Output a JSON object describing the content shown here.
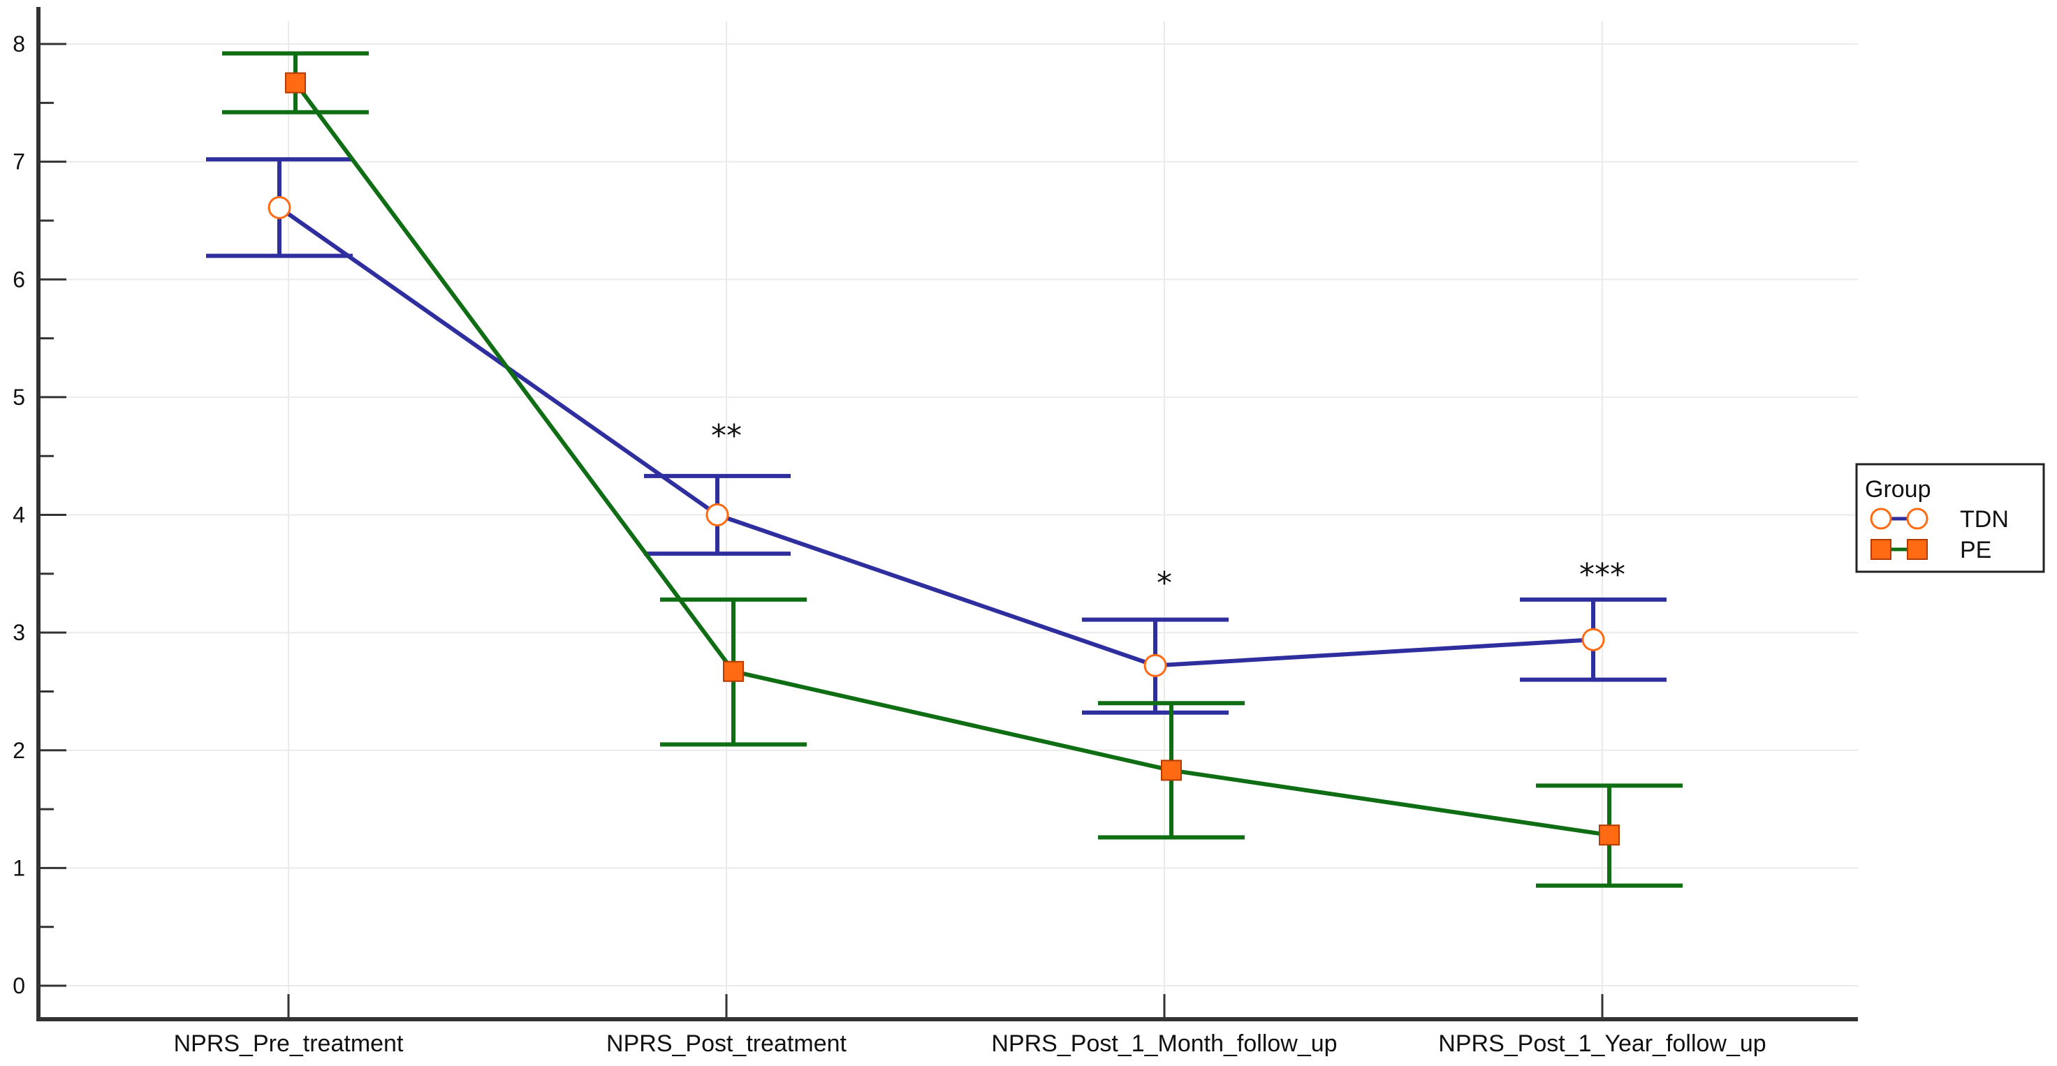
{
  "chart_data": {
    "type": "line",
    "title": "",
    "xlabel": "",
    "ylabel": "",
    "categories": [
      "NPRS_Pre_treatment",
      "NPRS_Post_treatment",
      "NPRS_Post_1_Month_follow_up",
      "NPRS_Post_1_Year_follow_up"
    ],
    "ylim": [
      0,
      8
    ],
    "yticks": [
      "0",
      "1",
      "2",
      "3",
      "4",
      "5",
      "6",
      "7",
      "8"
    ],
    "grid": true,
    "legend": {
      "title": "Group",
      "placement": "right",
      "entries": [
        "TDN",
        "PE"
      ]
    },
    "series": [
      {
        "name": "TDN",
        "color": "#2e2e9e",
        "marker": "circle",
        "marker_fill": "#ffffff",
        "marker_stroke": "#ff6a13",
        "values": [
          6.61,
          4.0,
          2.72,
          2.94
        ],
        "error_low": [
          6.2,
          3.67,
          2.32,
          2.6
        ],
        "error_high": [
          7.02,
          4.33,
          3.11,
          3.28
        ]
      },
      {
        "name": "PE",
        "color": "#0f6e14",
        "marker": "square",
        "marker_fill": "#ff6a13",
        "marker_stroke": "#b33a00",
        "values": [
          7.67,
          2.67,
          1.83,
          1.28
        ],
        "error_low": [
          7.42,
          2.05,
          1.26,
          0.85
        ],
        "error_high": [
          7.92,
          3.28,
          2.4,
          1.7
        ]
      }
    ],
    "annotations": [
      {
        "category_index": 1,
        "text": "**",
        "y": 4.75
      },
      {
        "category_index": 2,
        "text": "*",
        "y": 3.5
      },
      {
        "category_index": 3,
        "text": "***",
        "y": 3.57
      }
    ]
  }
}
